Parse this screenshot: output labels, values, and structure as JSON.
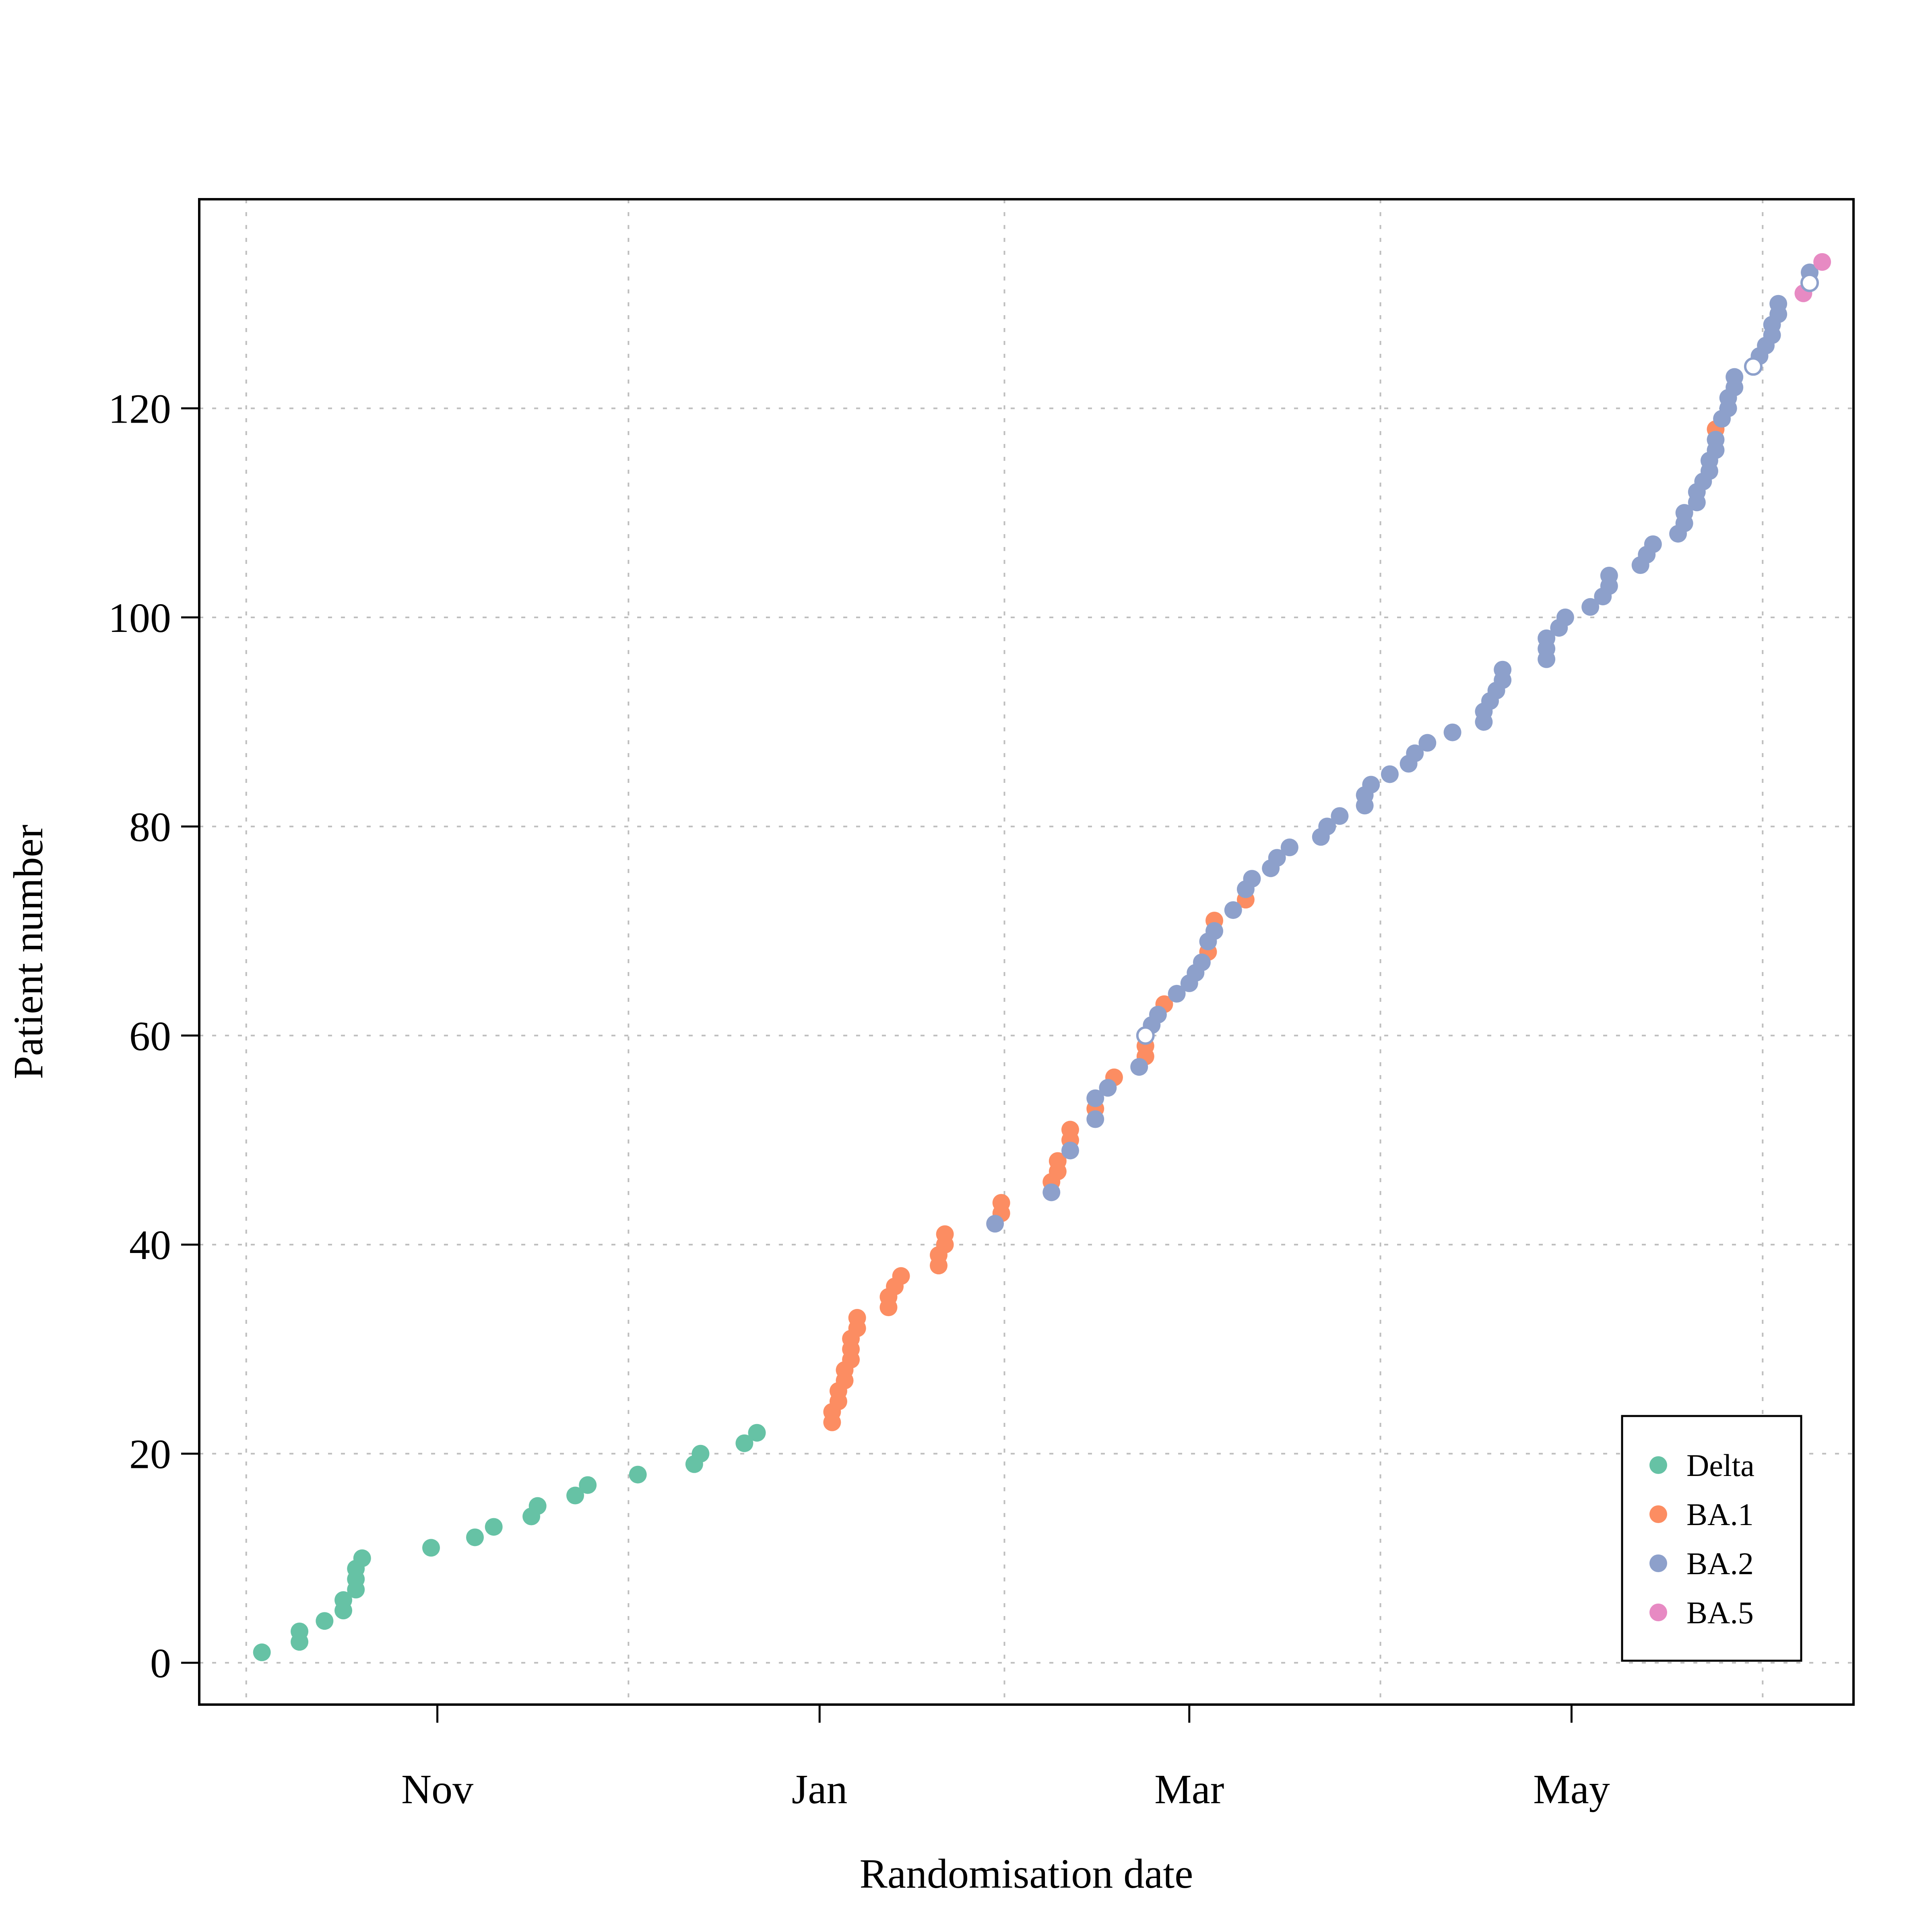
{
  "chart_data": {
    "type": "scatter",
    "xlabel": "Randomisation date",
    "ylabel": "Patient number",
    "x_ticks": [
      {
        "label": "Nov",
        "date": "2021-11-01"
      },
      {
        "label": "Jan",
        "date": "2022-01-01"
      },
      {
        "label": "Mar",
        "date": "2022-03-01"
      },
      {
        "label": "May",
        "date": "2022-05-01"
      }
    ],
    "x_range": [
      "2021-09-24",
      "2022-06-15"
    ],
    "y_ticks": [
      0,
      20,
      40,
      60,
      80,
      100,
      120
    ],
    "y_range": [
      -4,
      140
    ],
    "grid": true,
    "legend_position": "bottom-right",
    "colors": {
      "Delta": "#66c2a5",
      "BA.1": "#fc8d62",
      "BA.2": "#8da0cb",
      "BA.5": "#e78ac3"
    },
    "series": [
      {
        "name": "Delta",
        "points": [
          [
            "2021-10-04",
            1
          ],
          [
            "2021-10-10",
            2
          ],
          [
            "2021-10-10",
            3
          ],
          [
            "2021-10-14",
            4
          ],
          [
            "2021-10-17",
            5
          ],
          [
            "2021-10-17",
            6
          ],
          [
            "2021-10-19",
            7
          ],
          [
            "2021-10-19",
            8
          ],
          [
            "2021-10-19",
            9
          ],
          [
            "2021-10-20",
            10
          ],
          [
            "2021-10-31",
            11
          ],
          [
            "2021-11-07",
            12
          ],
          [
            "2021-11-10",
            13
          ],
          [
            "2021-11-16",
            14
          ],
          [
            "2021-11-17",
            15
          ],
          [
            "2021-11-23",
            16
          ],
          [
            "2021-11-25",
            17
          ],
          [
            "2021-12-03",
            18
          ],
          [
            "2021-12-12",
            19
          ],
          [
            "2021-12-13",
            20
          ],
          [
            "2021-12-20",
            21
          ],
          [
            "2021-12-22",
            22
          ]
        ]
      },
      {
        "name": "BA.1",
        "points": [
          [
            "2022-01-03",
            23
          ],
          [
            "2022-01-03",
            24
          ],
          [
            "2022-01-04",
            25
          ],
          [
            "2022-01-04",
            26
          ],
          [
            "2022-01-05",
            27
          ],
          [
            "2022-01-05",
            28
          ],
          [
            "2022-01-06",
            29
          ],
          [
            "2022-01-06",
            30
          ],
          [
            "2022-01-06",
            31
          ],
          [
            "2022-01-07",
            32
          ],
          [
            "2022-01-07",
            33
          ],
          [
            "2022-01-12",
            34
          ],
          [
            "2022-01-12",
            35
          ],
          [
            "2022-01-13",
            36
          ],
          [
            "2022-01-14",
            37
          ],
          [
            "2022-01-20",
            38
          ],
          [
            "2022-01-20",
            39
          ],
          [
            "2022-01-21",
            40
          ],
          [
            "2022-01-21",
            41
          ],
          [
            "2022-01-30",
            43
          ],
          [
            "2022-01-30",
            44
          ],
          [
            "2022-02-07",
            46
          ],
          [
            "2022-02-08",
            47
          ],
          [
            "2022-02-08",
            48
          ],
          [
            "2022-02-10",
            50
          ],
          [
            "2022-02-10",
            51
          ],
          [
            "2022-02-14",
            53
          ],
          [
            "2022-02-17",
            56
          ],
          [
            "2022-02-22",
            58
          ],
          [
            "2022-02-22",
            59
          ],
          [
            "2022-02-25",
            63
          ],
          [
            "2022-03-04",
            68
          ],
          [
            "2022-03-05",
            71
          ],
          [
            "2022-03-10",
            73
          ],
          [
            "2022-05-24",
            118
          ]
        ]
      },
      {
        "name": "BA.2",
        "points": [
          [
            "2022-01-29",
            42
          ],
          [
            "2022-02-07",
            45
          ],
          [
            "2022-02-10",
            49
          ],
          [
            "2022-02-14",
            52
          ],
          [
            "2022-02-14",
            54
          ],
          [
            "2022-02-16",
            55
          ],
          [
            "2022-02-21",
            57
          ],
          [
            "2022-02-23",
            61
          ],
          [
            "2022-02-24",
            62
          ],
          [
            "2022-02-27",
            64
          ],
          [
            "2022-03-01",
            65
          ],
          [
            "2022-03-02",
            66
          ],
          [
            "2022-03-03",
            67
          ],
          [
            "2022-03-04",
            69
          ],
          [
            "2022-03-05",
            70
          ],
          [
            "2022-03-08",
            72
          ],
          [
            "2022-03-10",
            74
          ],
          [
            "2022-03-11",
            75
          ],
          [
            "2022-03-14",
            76
          ],
          [
            "2022-03-15",
            77
          ],
          [
            "2022-03-17",
            78
          ],
          [
            "2022-03-22",
            79
          ],
          [
            "2022-03-23",
            80
          ],
          [
            "2022-03-25",
            81
          ],
          [
            "2022-03-29",
            82
          ],
          [
            "2022-03-29",
            83
          ],
          [
            "2022-03-30",
            84
          ],
          [
            "2022-04-02",
            85
          ],
          [
            "2022-04-05",
            86
          ],
          [
            "2022-04-06",
            87
          ],
          [
            "2022-04-08",
            88
          ],
          [
            "2022-04-12",
            89
          ],
          [
            "2022-04-17",
            90
          ],
          [
            "2022-04-17",
            91
          ],
          [
            "2022-04-18",
            92
          ],
          [
            "2022-04-19",
            93
          ],
          [
            "2022-04-20",
            94
          ],
          [
            "2022-04-20",
            95
          ],
          [
            "2022-04-27",
            96
          ],
          [
            "2022-04-27",
            97
          ],
          [
            "2022-04-27",
            98
          ],
          [
            "2022-04-29",
            99
          ],
          [
            "2022-04-30",
            100
          ],
          [
            "2022-05-04",
            101
          ],
          [
            "2022-05-06",
            102
          ],
          [
            "2022-05-07",
            103
          ],
          [
            "2022-05-07",
            104
          ],
          [
            "2022-05-12",
            105
          ],
          [
            "2022-05-13",
            106
          ],
          [
            "2022-05-14",
            107
          ],
          [
            "2022-05-18",
            108
          ],
          [
            "2022-05-19",
            109
          ],
          [
            "2022-05-19",
            110
          ],
          [
            "2022-05-21",
            111
          ],
          [
            "2022-05-21",
            112
          ],
          [
            "2022-05-22",
            113
          ],
          [
            "2022-05-23",
            114
          ],
          [
            "2022-05-23",
            115
          ],
          [
            "2022-05-24",
            116
          ],
          [
            "2022-05-24",
            117
          ],
          [
            "2022-05-25",
            119
          ],
          [
            "2022-05-26",
            120
          ],
          [
            "2022-05-26",
            121
          ],
          [
            "2022-05-27",
            122
          ],
          [
            "2022-05-27",
            123
          ],
          [
            "2022-05-31",
            125
          ],
          [
            "2022-06-01",
            126
          ],
          [
            "2022-06-02",
            127
          ],
          [
            "2022-06-02",
            128
          ],
          [
            "2022-06-03",
            129
          ],
          [
            "2022-06-03",
            130
          ],
          [
            "2022-06-08",
            133
          ]
        ]
      },
      {
        "name": "BA.5",
        "points": [
          [
            "2022-06-07",
            131
          ],
          [
            "2022-06-10",
            134
          ]
        ]
      },
      {
        "name": "",
        "hollow": true,
        "points": [
          [
            "2022-02-22",
            60
          ],
          [
            "2022-05-30",
            124
          ],
          [
            "2022-06-08",
            132
          ]
        ]
      }
    ]
  }
}
